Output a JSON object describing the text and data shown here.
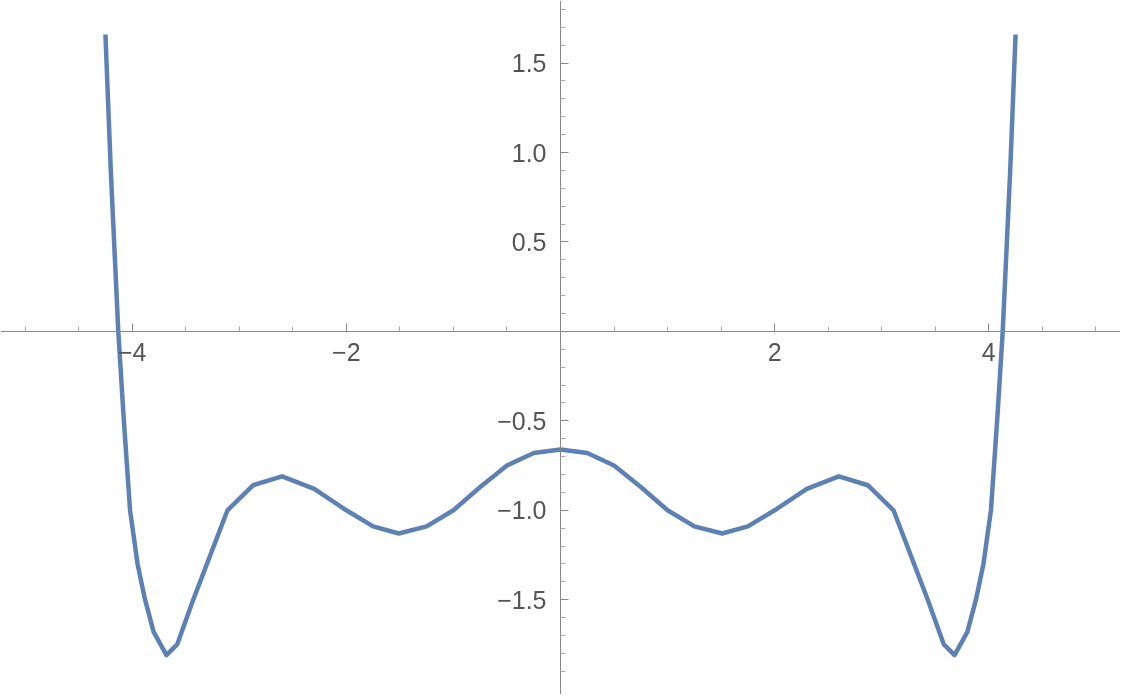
{
  "chart_data": {
    "type": "line",
    "x": [
      -4.25,
      -4.2,
      -4.13,
      -4.08,
      -4.02,
      -3.95,
      -3.88,
      -3.8,
      -3.68,
      -3.58,
      -3.43,
      -3.27,
      -3.11,
      -2.87,
      -2.6,
      -2.3,
      -2.0,
      -1.75,
      -1.51,
      -1.25,
      -1.0,
      -0.75,
      -0.5,
      -0.25,
      0,
      0.25,
      0.5,
      0.75,
      1.0,
      1.25,
      1.51,
      1.75,
      2.0,
      2.3,
      2.6,
      2.87,
      3.11,
      3.27,
      3.43,
      3.58,
      3.68,
      3.8,
      3.88,
      3.95,
      4.02,
      4.08,
      4.13,
      4.2,
      4.25
    ],
    "series": [
      {
        "color": "#5e81b5",
        "values": [
          1.66,
          0.9,
          0,
          -0.48,
          -1.0,
          -1.3,
          -1.5,
          -1.68,
          -1.81,
          -1.75,
          -1.5,
          -1.25,
          -1.0,
          -0.86,
          -0.81,
          -0.88,
          -1.0,
          -1.09,
          -1.13,
          -1.09,
          -1.0,
          -0.87,
          -0.75,
          -0.68,
          -0.66,
          -0.68,
          -0.75,
          -0.87,
          -1.0,
          -1.09,
          -1.13,
          -1.09,
          -1.0,
          -0.88,
          -0.81,
          -0.86,
          -1.0,
          -1.25,
          -1.5,
          -1.75,
          -1.81,
          -1.68,
          -1.5,
          -1.3,
          -1.0,
          -0.48,
          0,
          0.9,
          1.66
        ]
      }
    ],
    "xlim": [
      -5.23,
      5.23
    ],
    "ylim": [
      -2.03,
      1.85
    ],
    "xticks": [
      {
        "value": -5,
        "label": null
      },
      {
        "value": -4.5,
        "label": null
      },
      {
        "value": -4,
        "label": "−4"
      },
      {
        "value": -3.5,
        "label": null
      },
      {
        "value": -3,
        "label": null
      },
      {
        "value": -2.5,
        "label": null
      },
      {
        "value": -2,
        "label": "−2"
      },
      {
        "value": -1.5,
        "label": null
      },
      {
        "value": -1,
        "label": null
      },
      {
        "value": -0.5,
        "label": null
      },
      {
        "value": 0.5,
        "label": null
      },
      {
        "value": 1,
        "label": null
      },
      {
        "value": 1.5,
        "label": null
      },
      2,
      {
        "value": 2.5,
        "label": null
      },
      {
        "value": 3,
        "label": null
      },
      {
        "value": 3.5,
        "label": null
      },
      4,
      {
        "value": 4.5,
        "label": null
      },
      {
        "value": 5,
        "label": null
      }
    ],
    "yticks": [
      {
        "value": -1.9,
        "label": null
      },
      {
        "value": -1.8,
        "label": null
      },
      {
        "value": -1.7,
        "label": null
      },
      {
        "value": -1.6,
        "label": null
      },
      {
        "value": -1.5,
        "label": "−1.5"
      },
      {
        "value": -1.4,
        "label": null
      },
      {
        "value": -1.3,
        "label": null
      },
      {
        "value": -1.2,
        "label": null
      },
      {
        "value": -1.1,
        "label": null
      },
      {
        "value": -1.0,
        "label": "−1.0"
      },
      {
        "value": -0.9,
        "label": null
      },
      {
        "value": -0.8,
        "label": null
      },
      {
        "value": -0.7,
        "label": null
      },
      {
        "value": -0.6,
        "label": null
      },
      {
        "value": -0.5,
        "label": "−0.5"
      },
      {
        "value": -0.4,
        "label": null
      },
      {
        "value": -0.3,
        "label": null
      },
      {
        "value": -0.2,
        "label": null
      },
      {
        "value": -0.1,
        "label": null
      },
      {
        "value": 0.1,
        "label": null
      },
      {
        "value": 0.2,
        "label": null
      },
      {
        "value": 0.3,
        "label": null
      },
      {
        "value": 0.4,
        "label": null
      },
      0.5,
      {
        "value": 0.6,
        "label": null
      },
      {
        "value": 0.7,
        "label": null
      },
      {
        "value": 0.8,
        "label": null
      },
      {
        "value": 0.9,
        "label": null
      },
      {
        "value": 1.0,
        "label": "1.0"
      },
      {
        "value": 1.1,
        "label": null
      },
      {
        "value": 1.2,
        "label": null
      },
      {
        "value": 1.3,
        "label": null
      },
      {
        "value": 1.4,
        "label": null
      },
      1.5,
      {
        "value": 1.6,
        "label": null
      },
      {
        "value": 1.7,
        "label": null
      },
      {
        "value": 1.8,
        "label": null
      }
    ],
    "grid": false,
    "marker": "none",
    "line_style": "solid"
  }
}
